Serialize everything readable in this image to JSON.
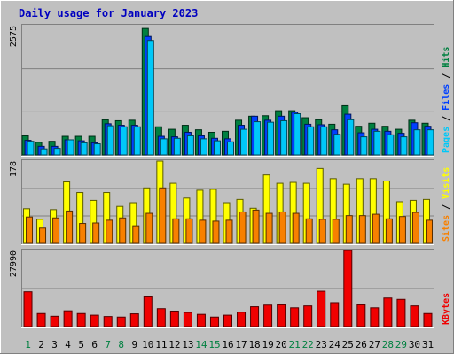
{
  "chart_data": {
    "type": "bar",
    "title": "Daily usage for January 2023",
    "categories": [
      "1",
      "2",
      "3",
      "4",
      "5",
      "6",
      "7",
      "8",
      "9",
      "10",
      "11",
      "12",
      "13",
      "14",
      "15",
      "16",
      "17",
      "18",
      "19",
      "20",
      "21",
      "22",
      "23",
      "24",
      "25",
      "26",
      "27",
      "28",
      "29",
      "30",
      "31"
    ],
    "weekend_days": [
      "1",
      "7",
      "8",
      "14",
      "15",
      "21",
      "22",
      "28",
      "29"
    ],
    "panels": [
      {
        "name": "hits-files-pages",
        "max_label": "2575",
        "ylim": [
          0,
          2575
        ],
        "right_label_parts": [
          {
            "text": "Pages",
            "color": "#00c8f8"
          },
          {
            "text": " / ",
            "color": "#000000"
          },
          {
            "text": "Files",
            "color": "#0040ff"
          },
          {
            "text": " / ",
            "color": "#000000"
          },
          {
            "text": "Hits",
            "color": "#008040"
          }
        ],
        "series": [
          {
            "name": "Hits",
            "color": "#008040",
            "values": [
              380,
              250,
              270,
              370,
              370,
              370,
              700,
              680,
              690,
              2520,
              560,
              510,
              590,
              500,
              450,
              470,
              690,
              770,
              780,
              880,
              880,
              740,
              700,
              610,
              980,
              570,
              630,
              570,
              510,
              690,
              630
            ]
          },
          {
            "name": "Files",
            "color": "#0040ff",
            "values": [
              290,
              170,
              170,
              300,
              280,
              240,
              620,
              590,
              590,
              2360,
              370,
              360,
              450,
              380,
              330,
              320,
              590,
              770,
              690,
              770,
              850,
              610,
              600,
              500,
              810,
              440,
              510,
              470,
              430,
              640,
              570
            ]
          },
          {
            "name": "Pages",
            "color": "#00c8f8",
            "values": [
              270,
              120,
              130,
              300,
              240,
              220,
              580,
              560,
              560,
              2280,
              320,
              330,
              380,
              320,
              280,
              260,
              510,
              660,
              650,
              680,
              820,
              560,
              560,
              410,
              700,
              360,
              470,
              400,
              360,
              500,
              500
            ]
          }
        ]
      },
      {
        "name": "visits-sites",
        "max_label": "178",
        "ylim": [
          0,
          178
        ],
        "right_label_parts": [
          {
            "text": "Sites",
            "color": "#f88000"
          },
          {
            "text": " / ",
            "color": "#000000"
          },
          {
            "text": "Visits",
            "color": "#ffff00"
          }
        ],
        "series": [
          {
            "name": "Visits",
            "color": "#ffff00",
            "values": [
              75,
              52,
              73,
              133,
              110,
              93,
              110,
              80,
              88,
              120,
              178,
              130,
              98,
              115,
              117,
              88,
              95,
              76,
              148,
              130,
              132,
              130,
              162,
              140,
              128,
              140,
              140,
              135,
              90,
              93,
              95
            ]
          },
          {
            "name": "Sites",
            "color": "#f88000",
            "values": [
              57,
              33,
              55,
              70,
              43,
              44,
              50,
              55,
              38,
              65,
              120,
              53,
              53,
              50,
              48,
              50,
              68,
              72,
              65,
              68,
              65,
              53,
              52,
              52,
              60,
              60,
              63,
              53,
              58,
              67,
              50
            ]
          }
        ]
      },
      {
        "name": "kbytes",
        "max_label": "27990",
        "ylim": [
          0,
          27990
        ],
        "right_label_parts": [
          {
            "text": "KBytes",
            "color": "#f00000"
          }
        ],
        "series": [
          {
            "name": "KBytes",
            "color": "#f00000",
            "values": [
              12800,
              4800,
              3800,
              5800,
              4800,
              4200,
              3700,
              3500,
              4700,
              10900,
              6600,
              5700,
              5200,
              4500,
              3500,
              4200,
              5300,
              7300,
              7900,
              8000,
              6900,
              7600,
              13000,
              8800,
              27990,
              8000,
              6900,
              10500,
              10000,
              7600,
              4800
            ]
          }
        ]
      }
    ]
  }
}
